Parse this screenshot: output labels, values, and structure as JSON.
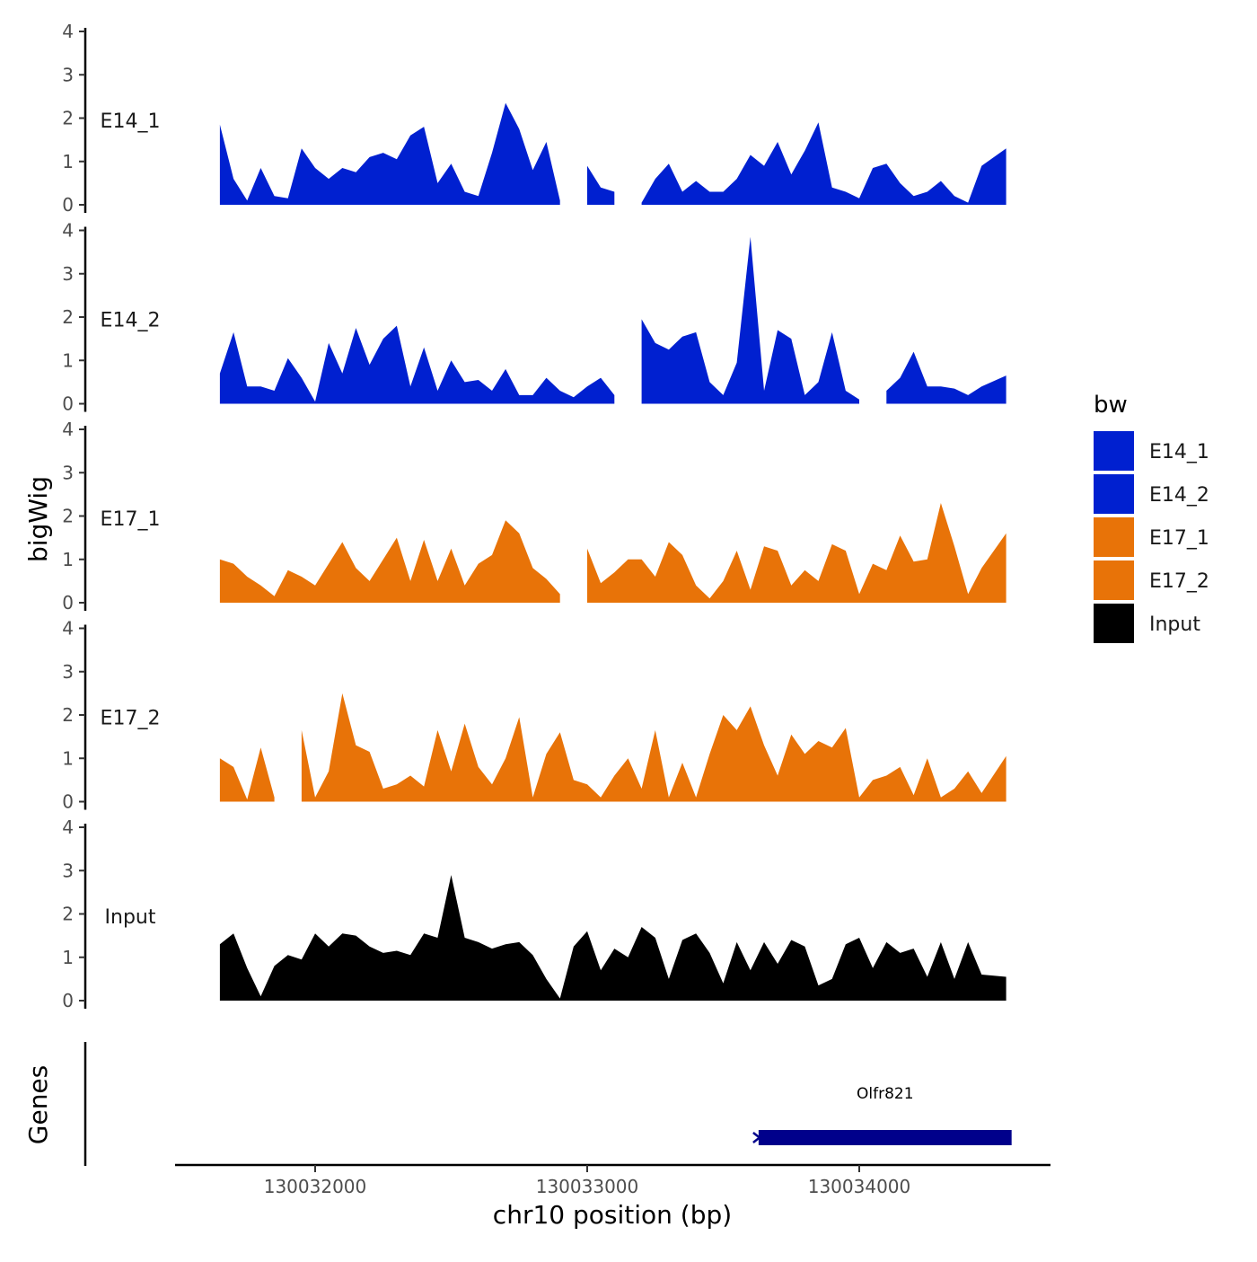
{
  "chart_data": {
    "type": "area",
    "xlabel": "chr10 position (bp)",
    "ylabel": "bigWig",
    "genes_label": "Genes",
    "xlim": [
      130031350,
      130034700
    ],
    "x_ticks": [
      130032000,
      130033000,
      130034000
    ],
    "x_tick_labels": [
      "130032000",
      "130033000",
      "130034000"
    ],
    "ylim": [
      0,
      4
    ],
    "y_ticks": [
      "0",
      "1",
      "2",
      "3",
      "4"
    ],
    "legend": {
      "title": "bw",
      "position": "right",
      "entries": [
        {
          "name": "E14_1",
          "color": "#0020D0"
        },
        {
          "name": "E14_2",
          "color": "#0020D0"
        },
        {
          "name": "E17_1",
          "color": "#E87308"
        },
        {
          "name": "E17_2",
          "color": "#E87308"
        },
        {
          "name": "Input",
          "color": "#000000"
        }
      ]
    },
    "x": [
      130031650,
      130031700,
      130031750,
      130031800,
      130031850,
      130031900,
      130031950,
      130032000,
      130032050,
      130032100,
      130032150,
      130032200,
      130032250,
      130032300,
      130032350,
      130032400,
      130032450,
      130032500,
      130032550,
      130032600,
      130032650,
      130032700,
      130032750,
      130032800,
      130032850,
      130032900,
      130032950,
      130033000,
      130033050,
      130033100,
      130033150,
      130033200,
      130033250,
      130033300,
      130033350,
      130033400,
      130033450,
      130033500,
      130033550,
      130033600,
      130033650,
      130033700,
      130033750,
      130033800,
      130033850,
      130033900,
      130033950,
      130034000,
      130034050,
      130034100,
      130034150,
      130034200,
      130034250,
      130034300,
      130034350,
      130034400,
      130034450,
      130034540
    ],
    "series": [
      {
        "name": "E14_1",
        "color": "#0020D0",
        "values": [
          1.85,
          0.6,
          0.1,
          0.85,
          0.2,
          0.15,
          1.3,
          0.85,
          0.6,
          0.85,
          0.75,
          1.1,
          1.2,
          1.05,
          1.6,
          1.8,
          0.5,
          0.95,
          0.3,
          0.2,
          1.2,
          2.35,
          1.75,
          0.8,
          1.45,
          0.1,
          null,
          0.9,
          0.4,
          0.3,
          null,
          0.05,
          0.6,
          0.95,
          0.3,
          0.55,
          0.3,
          0.3,
          0.6,
          1.15,
          0.9,
          1.45,
          0.7,
          1.25,
          1.9,
          0.4,
          0.3,
          0.15,
          0.85,
          0.95,
          0.5,
          0.2,
          0.3,
          0.55,
          0.2,
          0.05,
          0.9,
          1.3
        ]
      },
      {
        "name": "E14_2",
        "color": "#0020D0",
        "values": [
          0.7,
          1.65,
          0.4,
          0.4,
          0.3,
          1.05,
          0.6,
          0.05,
          1.4,
          0.7,
          1.75,
          0.9,
          1.5,
          1.8,
          0.4,
          1.3,
          0.3,
          1.0,
          0.5,
          0.55,
          0.3,
          0.8,
          0.2,
          0.2,
          0.6,
          0.3,
          0.15,
          0.4,
          0.6,
          0.2,
          null,
          1.95,
          1.4,
          1.25,
          1.55,
          1.65,
          0.5,
          0.2,
          0.95,
          3.85,
          0.3,
          1.7,
          1.5,
          0.2,
          0.5,
          1.65,
          0.3,
          0.1,
          null,
          0.3,
          0.6,
          1.2,
          0.4,
          0.4,
          0.35,
          0.2,
          0.4,
          0.65
        ]
      },
      {
        "name": "E17_1",
        "color": "#E87308",
        "values": [
          1.0,
          0.9,
          0.6,
          0.4,
          0.15,
          0.75,
          0.6,
          0.4,
          0.9,
          1.4,
          0.8,
          0.5,
          1.0,
          1.5,
          0.5,
          1.45,
          0.5,
          1.25,
          0.4,
          0.9,
          1.1,
          1.9,
          1.6,
          0.8,
          0.55,
          0.2,
          null,
          1.25,
          0.45,
          0.7,
          1.0,
          1.0,
          0.6,
          1.4,
          1.1,
          0.4,
          0.1,
          0.5,
          1.2,
          0.3,
          1.3,
          1.2,
          0.4,
          0.75,
          0.5,
          1.35,
          1.2,
          0.2,
          0.9,
          0.75,
          1.55,
          0.95,
          1.0,
          2.3,
          1.3,
          0.2,
          0.8,
          1.6
        ]
      },
      {
        "name": "E17_2",
        "color": "#E87308",
        "values": [
          1.0,
          0.8,
          0.05,
          1.25,
          0.1,
          null,
          1.65,
          0.1,
          0.7,
          2.5,
          1.3,
          1.15,
          0.3,
          0.4,
          0.6,
          0.35,
          1.65,
          0.7,
          1.8,
          0.8,
          0.4,
          1.0,
          1.95,
          0.1,
          1.1,
          1.6,
          0.5,
          0.4,
          0.1,
          0.6,
          1.0,
          0.3,
          1.65,
          0.1,
          0.9,
          0.1,
          1.1,
          2.0,
          1.65,
          2.2,
          1.3,
          0.6,
          1.55,
          1.1,
          1.4,
          1.25,
          1.7,
          0.1,
          0.5,
          0.6,
          0.8,
          0.15,
          1.0,
          0.1,
          0.3,
          0.7,
          0.2,
          1.05
        ]
      },
      {
        "name": "Input",
        "color": "#000000",
        "values": [
          1.3,
          1.55,
          0.75,
          0.1,
          0.8,
          1.05,
          0.95,
          1.55,
          1.25,
          1.55,
          1.5,
          1.25,
          1.1,
          1.15,
          1.05,
          1.55,
          1.45,
          2.9,
          1.45,
          1.35,
          1.2,
          1.3,
          1.35,
          1.05,
          0.5,
          0.05,
          1.25,
          1.6,
          0.7,
          1.2,
          1.0,
          1.7,
          1.45,
          0.5,
          1.4,
          1.55,
          1.1,
          0.4,
          1.35,
          0.7,
          1.35,
          0.85,
          1.4,
          1.25,
          0.35,
          0.5,
          1.3,
          1.45,
          0.75,
          1.35,
          1.1,
          1.2,
          0.55,
          1.35,
          0.5,
          1.35,
          0.6,
          0.55
        ]
      }
    ],
    "genes": [
      {
        "name": "Olfr821",
        "start": 130033630,
        "end": 130034560,
        "strand": "-",
        "color": "#00008B"
      }
    ]
  }
}
